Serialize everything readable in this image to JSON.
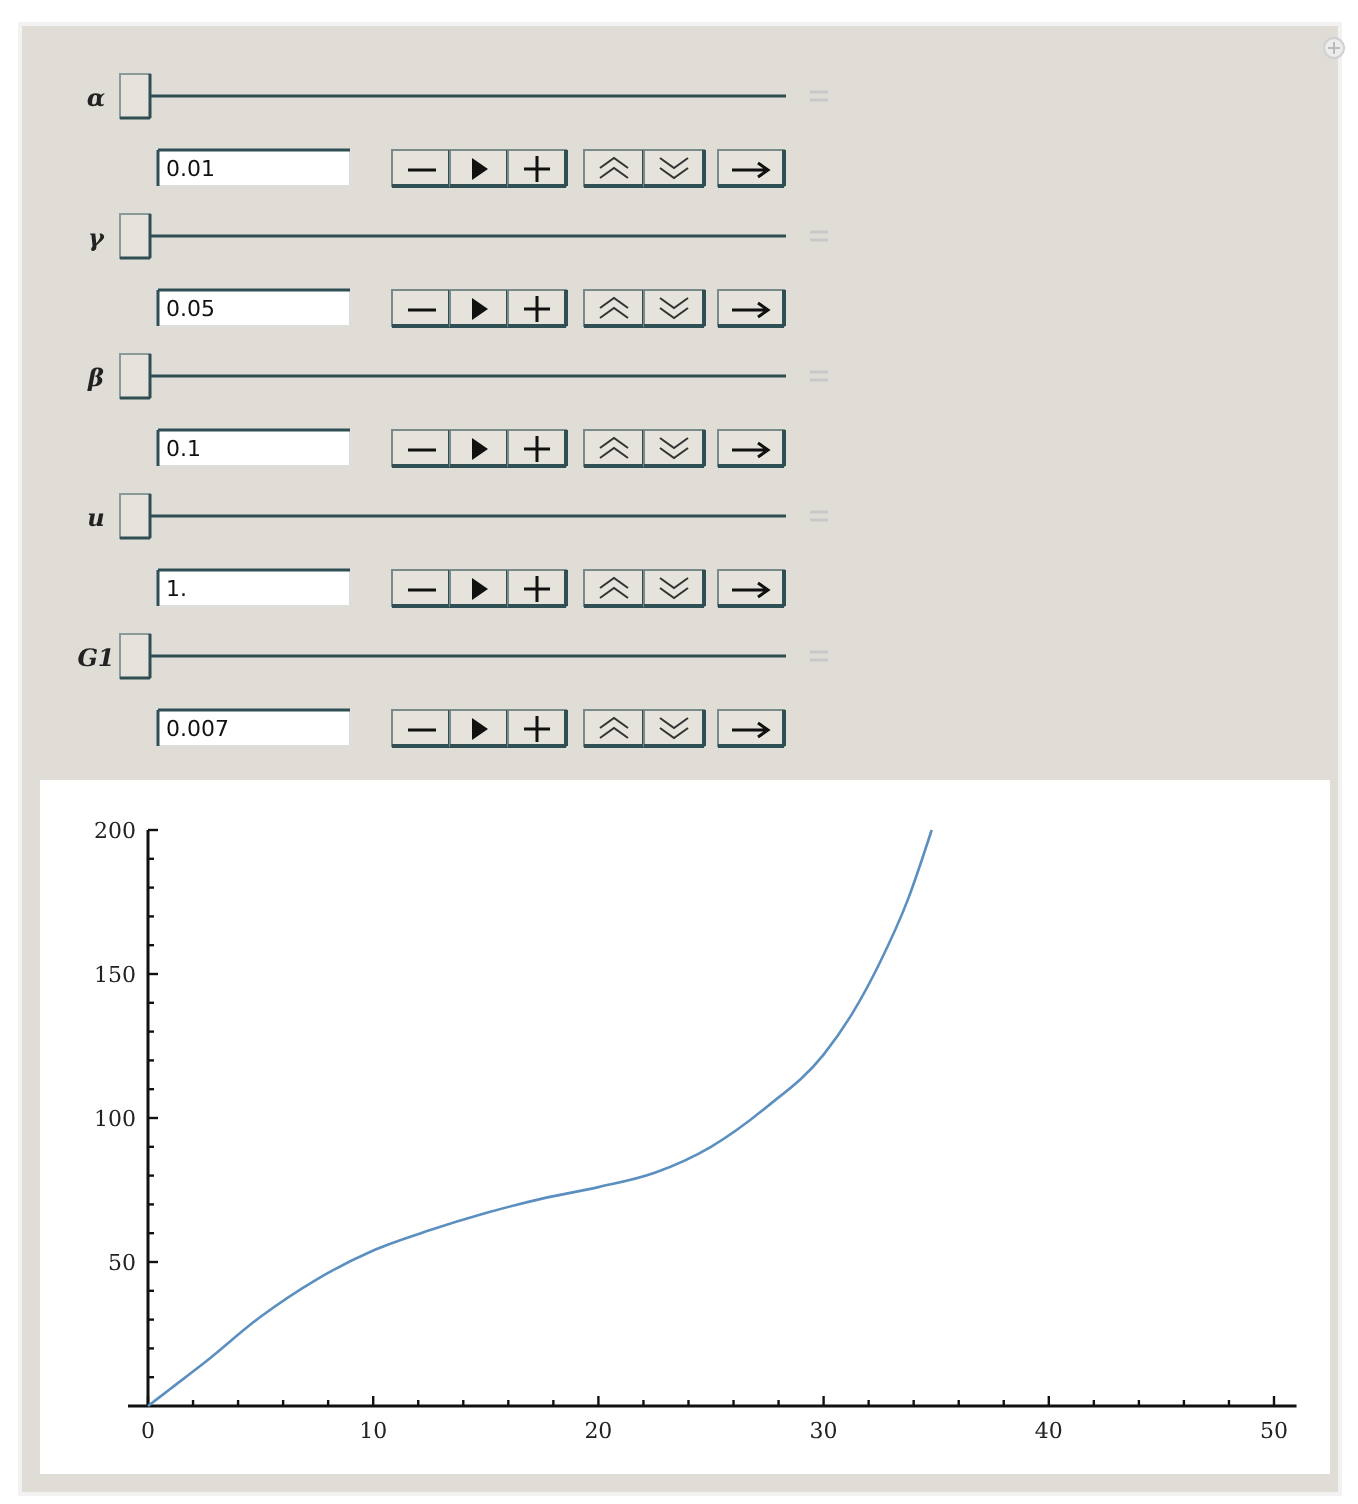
{
  "chart_data": {
    "type": "line",
    "annotations": [
      "α",
      "0.01",
      "γ",
      "0.05",
      "β",
      "0.1",
      "u",
      "1.",
      "G1",
      "0.007"
    ],
    "x": [
      0,
      1,
      2.5,
      5,
      7.5,
      10,
      12.5,
      15,
      17.5,
      20,
      22.5,
      25,
      27.5,
      30,
      31.25,
      32.5,
      33.75,
      34.8
    ],
    "series": [
      {
        "color": "#5b8fc0",
        "values": [
          0,
          6,
          15,
          31,
          44,
          54,
          61,
          67,
          72,
          76,
          81,
          90,
          104,
          122,
          136,
          154,
          176,
          200
        ]
      }
    ],
    "xlim": [
      0,
      51
    ],
    "ylim": [
      0,
      200
    ],
    "xticks": [
      0,
      {
        "value": 2,
        "label": null
      },
      {
        "value": 4,
        "label": null
      },
      {
        "value": 6,
        "label": null
      },
      {
        "value": 8,
        "label": null
      },
      10,
      {
        "value": 12,
        "label": null
      },
      {
        "value": 14,
        "label": null
      },
      {
        "value": 16,
        "label": null
      },
      {
        "value": 18,
        "label": null
      },
      20,
      {
        "value": 22,
        "label": null
      },
      {
        "value": 24,
        "label": null
      },
      {
        "value": 26,
        "label": null
      },
      {
        "value": 28,
        "label": null
      },
      30,
      {
        "value": 32,
        "label": null
      },
      {
        "value": 34,
        "label": null
      },
      {
        "value": 36,
        "label": null
      },
      {
        "value": 38,
        "label": null
      },
      40,
      {
        "value": 42,
        "label": null
      },
      {
        "value": 44,
        "label": null
      },
      {
        "value": 46,
        "label": null
      },
      {
        "value": 48,
        "label": null
      },
      50
    ],
    "yticks": [
      {
        "value": 10,
        "label": null
      },
      {
        "value": 20,
        "label": null
      },
      {
        "value": 30,
        "label": null
      },
      {
        "value": 40,
        "label": null
      },
      50,
      {
        "value": 60,
        "label": null
      },
      {
        "value": 70,
        "label": null
      },
      {
        "value": 80,
        "label": null
      },
      {
        "value": 90,
        "label": null
      },
      100,
      {
        "value": 110,
        "label": null
      },
      {
        "value": 120,
        "label": null
      },
      {
        "value": 130,
        "label": null
      },
      {
        "value": 140,
        "label": null
      },
      150,
      {
        "value": 160,
        "label": null
      },
      {
        "value": 170,
        "label": null
      },
      {
        "value": 180,
        "label": null
      },
      {
        "value": 190,
        "label": null
      },
      200
    ],
    "marker": "none",
    "line_style": "solid"
  }
}
